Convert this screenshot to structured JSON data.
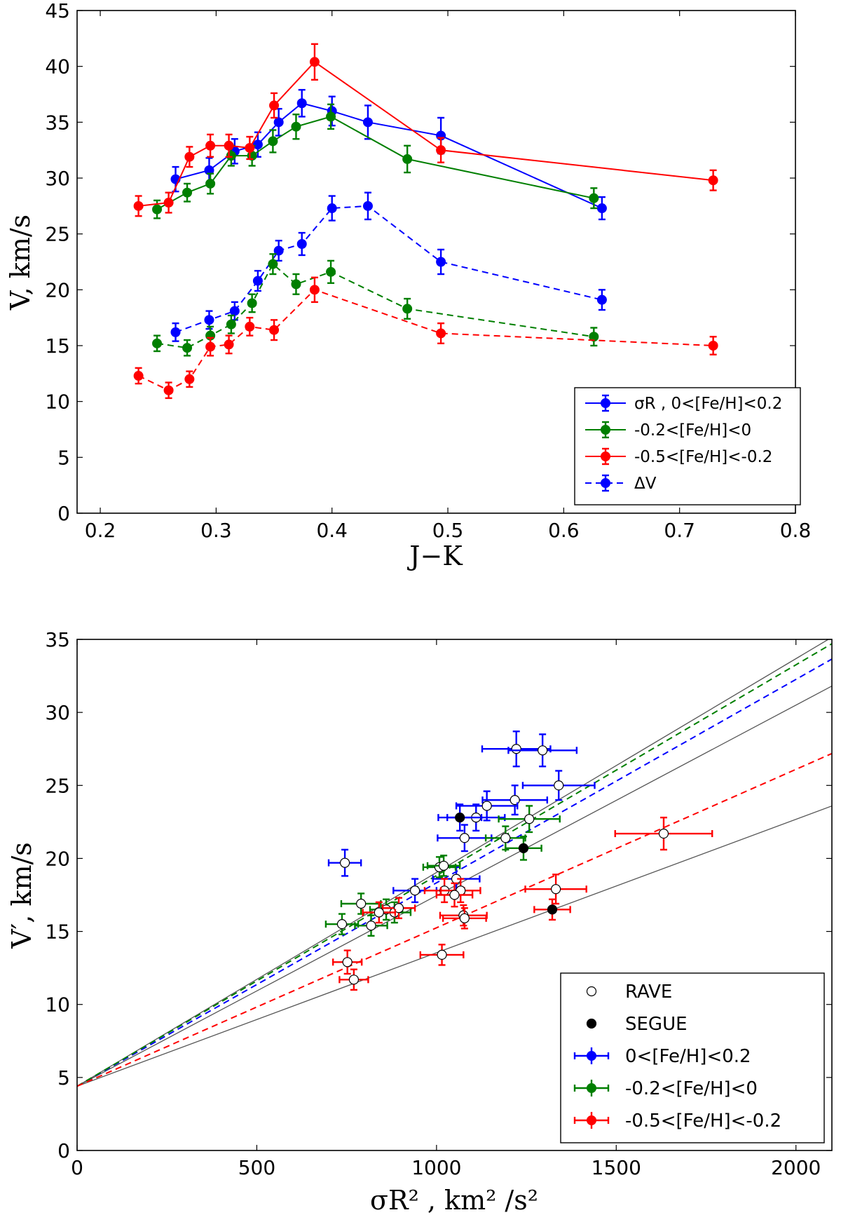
{
  "colors": {
    "blue": "#0000ff",
    "green": "#007f00",
    "red": "#ff0000",
    "black": "#000000",
    "gray": "#555555"
  },
  "chart_data": [
    {
      "type": "line",
      "xlabel": "J−K",
      "ylabel": "V, km/s",
      "xlim": [
        0.18,
        0.8
      ],
      "ylim": [
        0,
        45
      ],
      "xticks": [
        "0.2",
        "0.3",
        "0.4",
        "0.5",
        "0.6",
        "0.7",
        "0.8"
      ],
      "yticks": [
        "0",
        "5",
        "10",
        "15",
        "20",
        "25",
        "30",
        "35",
        "40",
        "45"
      ],
      "legend_position": "lower-right",
      "series": [
        {
          "name": "σR , 0<[Fe/H]<0.2",
          "color": "#0000ff",
          "style": "solid",
          "x": [
            0.265,
            0.294,
            0.316,
            0.336,
            0.354,
            0.374,
            0.4,
            0.431,
            0.494,
            0.633
          ],
          "y": [
            29.9,
            30.7,
            32.4,
            33.0,
            35.0,
            36.7,
            36.0,
            35.0,
            33.8,
            27.3
          ],
          "err": [
            1.1,
            1.1,
            1.1,
            1.1,
            1.2,
            1.2,
            1.3,
            1.5,
            1.6,
            1.0
          ]
        },
        {
          "name": "-0.2<[Fe/H]<0",
          "color": "#007f00",
          "style": "solid",
          "x": [
            0.249,
            0.275,
            0.295,
            0.313,
            0.331,
            0.349,
            0.369,
            0.399,
            0.465,
            0.626
          ],
          "y": [
            27.2,
            28.7,
            29.5,
            32.0,
            32.0,
            33.3,
            34.6,
            35.5,
            31.7,
            28.2
          ],
          "err": [
            0.8,
            0.8,
            0.9,
            0.9,
            0.9,
            1.0,
            1.1,
            1.1,
            1.2,
            0.9
          ]
        },
        {
          "name": "-0.5<[Fe/H]<-0.2",
          "color": "#ff0000",
          "style": "solid",
          "x": [
            0.233,
            0.259,
            0.277,
            0.295,
            0.311,
            0.329,
            0.35,
            0.385,
            0.494,
            0.729
          ],
          "y": [
            27.5,
            27.8,
            31.9,
            32.9,
            32.9,
            32.7,
            36.5,
            40.4,
            32.5,
            29.8
          ],
          "err": [
            0.9,
            0.9,
            0.9,
            1.0,
            1.0,
            1.0,
            1.1,
            1.6,
            1.1,
            0.9
          ]
        },
        {
          "name": "ΔV",
          "color": "#0000ff",
          "style": "dashed",
          "x": [
            0.265,
            0.294,
            0.316,
            0.336,
            0.354,
            0.374,
            0.4,
            0.431,
            0.494,
            0.633
          ],
          "y": [
            16.2,
            17.3,
            18.1,
            20.8,
            23.5,
            24.1,
            27.3,
            27.5,
            22.5,
            19.1
          ],
          "err": [
            0.8,
            0.8,
            0.8,
            0.9,
            0.9,
            1.0,
            1.1,
            1.2,
            1.1,
            0.9
          ]
        },
        {
          "name": "ΔV -0.2<[Fe/H]<0",
          "color": "#007f00",
          "style": "dashed",
          "x": [
            0.249,
            0.275,
            0.295,
            0.313,
            0.331,
            0.349,
            0.369,
            0.399,
            0.465,
            0.626
          ],
          "y": [
            15.2,
            14.8,
            15.9,
            16.9,
            18.8,
            22.3,
            20.5,
            21.6,
            18.3,
            15.8
          ],
          "err": [
            0.7,
            0.7,
            0.8,
            0.8,
            0.8,
            0.9,
            0.9,
            1.0,
            0.9,
            0.8
          ]
        },
        {
          "name": "ΔV -0.5<[Fe/H]<-0.2",
          "color": "#ff0000",
          "style": "dashed",
          "x": [
            0.233,
            0.259,
            0.277,
            0.295,
            0.311,
            0.329,
            0.35,
            0.385,
            0.494,
            0.729
          ],
          "y": [
            12.3,
            11.0,
            12.0,
            14.9,
            15.1,
            16.7,
            16.4,
            20.0,
            16.1,
            15.0
          ],
          "err": [
            0.7,
            0.7,
            0.7,
            0.8,
            0.8,
            0.8,
            0.9,
            1.1,
            0.9,
            0.8
          ]
        }
      ],
      "legend_entries": [
        {
          "label": "σR , 0<[Fe/H]<0.2",
          "color": "#0000ff",
          "style": "solid"
        },
        {
          "label": "-0.2<[Fe/H]<0",
          "color": "#007f00",
          "style": "solid"
        },
        {
          "label": "-0.5<[Fe/H]<-0.2",
          "color": "#ff0000",
          "style": "solid"
        },
        {
          "label": "ΔV",
          "color": "#0000ff",
          "style": "dashed"
        }
      ]
    },
    {
      "type": "scatter",
      "xlabel": "σR² , km² /s²",
      "ylabel": "V′, km/s",
      "xlim": [
        0,
        2100
      ],
      "ylim": [
        0,
        35
      ],
      "xticks": [
        "0",
        "500",
        "1000",
        "1500",
        "2000"
      ],
      "yticks": [
        "0",
        "5",
        "10",
        "15",
        "20",
        "25",
        "30",
        "35"
      ],
      "legend_position": "lower-right",
      "lines": [
        {
          "color": "#555555",
          "style": "solid",
          "intercept": 4.4,
          "slope": 0.01464
        },
        {
          "color": "#555555",
          "style": "solid",
          "intercept": 4.4,
          "slope": 0.01305
        },
        {
          "color": "#555555",
          "style": "solid",
          "intercept": 4.4,
          "slope": 0.00914
        },
        {
          "color": "#0000ff",
          "style": "dashed",
          "intercept": 4.4,
          "slope": 0.01393
        },
        {
          "color": "#007f00",
          "style": "dashed",
          "intercept": 4.4,
          "slope": 0.01443
        },
        {
          "color": "#ff0000",
          "style": "dashed",
          "intercept": 4.4,
          "slope": 0.01085
        }
      ],
      "points": [
        {
          "group": "blue",
          "source": "RAVE",
          "x": 745,
          "y": 19.7,
          "xerr": 45,
          "yerr": 0.9
        },
        {
          "group": "blue",
          "source": "RAVE",
          "x": 1222,
          "y": 27.5,
          "xerr": 95,
          "yerr": 1.2
        },
        {
          "group": "blue",
          "source": "RAVE",
          "x": 1295,
          "y": 27.4,
          "xerr": 95,
          "yerr": 1.1
        },
        {
          "group": "blue",
          "source": "RAVE",
          "x": 1340,
          "y": 25.0,
          "xerr": 100,
          "yerr": 1.0
        },
        {
          "group": "blue",
          "source": "RAVE",
          "x": 1218,
          "y": 24.0,
          "xerr": 90,
          "yerr": 1.0
        },
        {
          "group": "blue",
          "source": "RAVE",
          "x": 1140,
          "y": 23.6,
          "xerr": 85,
          "yerr": 1.0
        },
        {
          "group": "blue",
          "source": "RAVE",
          "x": 1110,
          "y": 22.8,
          "xerr": 80,
          "yerr": 0.9
        },
        {
          "group": "blue",
          "source": "RAVE",
          "x": 1078,
          "y": 21.4,
          "xerr": 75,
          "yerr": 0.9
        },
        {
          "group": "blue",
          "source": "SEGUE",
          "x": 1065,
          "y": 22.8,
          "xerr": 60,
          "yerr": 0.9
        },
        {
          "group": "blue",
          "source": "RAVE",
          "x": 940,
          "y": 17.8,
          "xerr": 60,
          "yerr": 0.8
        },
        {
          "group": "blue",
          "source": "RAVE",
          "x": 1055,
          "y": 18.6,
          "xerr": 65,
          "yerr": 0.8
        },
        {
          "group": "green",
          "source": "RAVE",
          "x": 1008,
          "y": 19.4,
          "xerr": 45,
          "yerr": 0.7
        },
        {
          "group": "green",
          "source": "RAVE",
          "x": 1020,
          "y": 19.5,
          "xerr": 45,
          "yerr": 0.7
        },
        {
          "group": "green",
          "source": "RAVE",
          "x": 1192,
          "y": 21.4,
          "xerr": 55,
          "yerr": 0.8
        },
        {
          "group": "green",
          "source": "RAVE",
          "x": 1258,
          "y": 22.7,
          "xerr": 85,
          "yerr": 0.9
        },
        {
          "group": "green",
          "source": "SEGUE",
          "x": 1242,
          "y": 20.7,
          "xerr": 50,
          "yerr": 0.8
        },
        {
          "group": "green",
          "source": "RAVE",
          "x": 790,
          "y": 16.9,
          "xerr": 55,
          "yerr": 0.7
        },
        {
          "group": "green",
          "source": "RAVE",
          "x": 737,
          "y": 15.5,
          "xerr": 45,
          "yerr": 0.7
        },
        {
          "group": "green",
          "source": "RAVE",
          "x": 818,
          "y": 15.4,
          "xerr": 45,
          "yerr": 0.7
        },
        {
          "group": "green",
          "source": "RAVE",
          "x": 860,
          "y": 16.5,
          "xerr": 45,
          "yerr": 0.7
        },
        {
          "group": "green",
          "source": "RAVE",
          "x": 883,
          "y": 16.3,
          "xerr": 45,
          "yerr": 0.7
        },
        {
          "group": "red",
          "source": "RAVE",
          "x": 1632,
          "y": 21.7,
          "xerr": 135,
          "yerr": 1.1
        },
        {
          "group": "red",
          "source": "RAVE",
          "x": 1332,
          "y": 17.9,
          "xerr": 85,
          "yerr": 1.0
        },
        {
          "group": "red",
          "source": "SEGUE",
          "x": 1322,
          "y": 16.5,
          "xerr": 50,
          "yerr": 0.7
        },
        {
          "group": "red",
          "source": "RAVE",
          "x": 1022,
          "y": 17.8,
          "xerr": 55,
          "yerr": 0.8
        },
        {
          "group": "red",
          "source": "RAVE",
          "x": 1067,
          "y": 17.8,
          "xerr": 55,
          "yerr": 0.8
        },
        {
          "group": "red",
          "source": "RAVE",
          "x": 1050,
          "y": 17.5,
          "xerr": 50,
          "yerr": 0.8
        },
        {
          "group": "red",
          "source": "RAVE",
          "x": 1075,
          "y": 16.1,
          "xerr": 65,
          "yerr": 0.7
        },
        {
          "group": "red",
          "source": "RAVE",
          "x": 1078,
          "y": 15.9,
          "xerr": 60,
          "yerr": 0.7
        },
        {
          "group": "red",
          "source": "RAVE",
          "x": 1015,
          "y": 13.4,
          "xerr": 60,
          "yerr": 0.7
        },
        {
          "group": "red",
          "source": "RAVE",
          "x": 752,
          "y": 12.9,
          "xerr": 40,
          "yerr": 0.8
        },
        {
          "group": "red",
          "source": "RAVE",
          "x": 770,
          "y": 11.7,
          "xerr": 40,
          "yerr": 0.7
        },
        {
          "group": "red",
          "source": "RAVE",
          "x": 895,
          "y": 16.6,
          "xerr": 45,
          "yerr": 0.7
        },
        {
          "group": "red",
          "source": "RAVE",
          "x": 840,
          "y": 16.3,
          "xerr": 45,
          "yerr": 0.7
        }
      ],
      "legend_entries": [
        {
          "label": "RAVE",
          "marker": "open-circle"
        },
        {
          "label": "SEGUE",
          "marker": "filled-circle"
        },
        {
          "label": "0<[Fe/H]<0.2",
          "color": "#0000ff",
          "marker": "errorbar"
        },
        {
          "label": "-0.2<[Fe/H]<0",
          "color": "#007f00",
          "marker": "errorbar"
        },
        {
          "label": "-0.5<[Fe/H]<-0.2",
          "color": "#ff0000",
          "marker": "errorbar"
        }
      ]
    }
  ]
}
